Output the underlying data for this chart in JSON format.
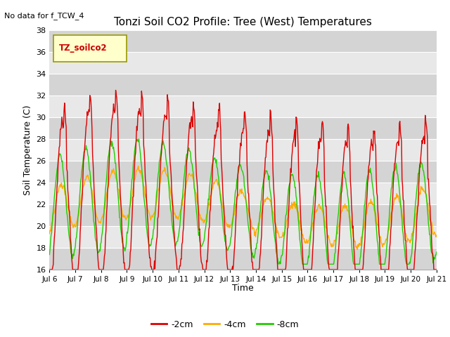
{
  "title": "Tonzi Soil CO2 Profile: Tree (West) Temperatures",
  "no_data_text": "No data for f_TCW_4",
  "ylabel": "Soil Temperature (C)",
  "xlabel": "Time",
  "legend_label": "TZ_soilco2",
  "ylim": [
    16,
    38
  ],
  "yticks": [
    16,
    18,
    20,
    22,
    24,
    26,
    28,
    30,
    32,
    34,
    36,
    38
  ],
  "xtick_labels": [
    "Jul 6",
    "Jul 7",
    "Jul 8",
    "Jul 9",
    "Jul 10",
    "Jul 11",
    "Jul 12",
    "Jul 13",
    "Jul 14",
    "Jul 15",
    "Jul 16",
    "Jul 17",
    "Jul 18",
    "Jul 19",
    "Jul 20",
    "Jul 21"
  ],
  "colors": {
    "2cm": "#dd0000",
    "4cm": "#ffaa00",
    "8cm": "#22cc00"
  },
  "bg_color": "#e8e8e8",
  "bg_color2": "#d4d4d4",
  "legend_box_facecolor": "#ffffcc",
  "legend_box_edgecolor": "#999900",
  "legend_text_color": "#cc0000",
  "linewidth": 1.0,
  "figsize": [
    6.4,
    4.8
  ],
  "dpi": 100
}
